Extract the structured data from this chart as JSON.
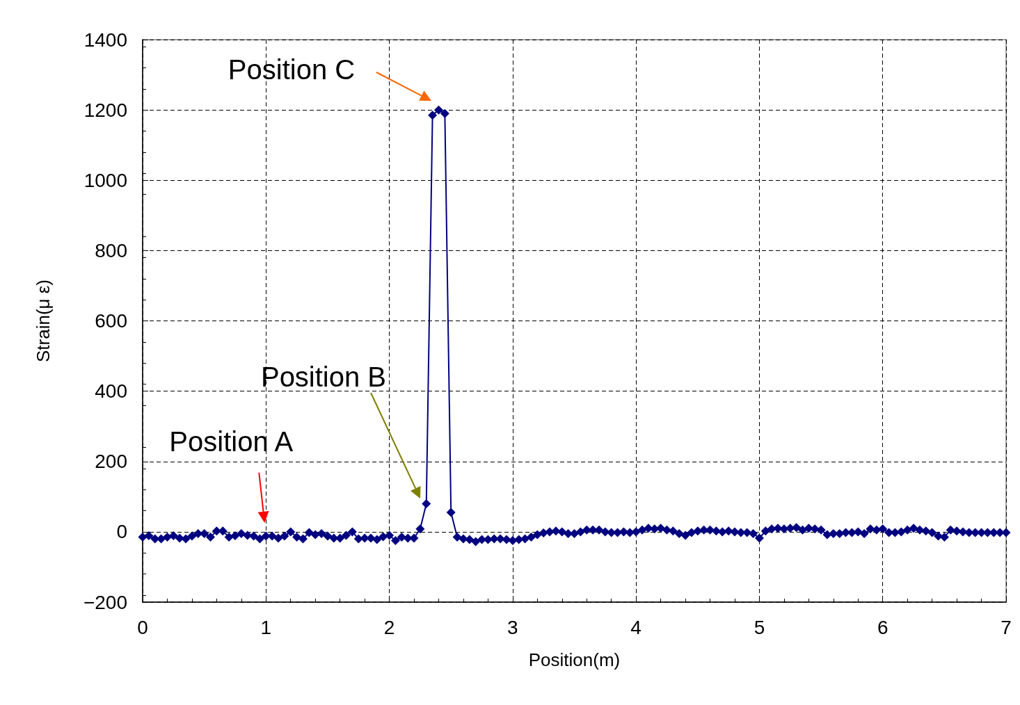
{
  "chart_data": {
    "type": "line",
    "xlabel": "Position(m)",
    "ylabel": "Strain(μ ε)",
    "xlim": [
      0,
      7
    ],
    "xticks": [
      0,
      1,
      2,
      3,
      4,
      5,
      6,
      7
    ],
    "ylim": [
      -200,
      1400
    ],
    "yticks": [
      -200,
      0,
      200,
      400,
      600,
      800,
      1000,
      1200,
      1400
    ],
    "grid": true,
    "marker": "diamond",
    "line_style": "solid",
    "x": [
      0,
      0.05,
      0.1,
      0.15,
      0.2,
      0.25,
      0.3,
      0.35,
      0.4,
      0.45,
      0.5,
      0.55,
      0.6,
      0.65,
      0.7,
      0.75,
      0.8,
      0.85,
      0.9,
      0.95,
      1,
      1.05,
      1.1,
      1.15,
      1.2,
      1.25,
      1.3,
      1.35,
      1.4,
      1.45,
      1.5,
      1.55,
      1.6,
      1.65,
      1.7,
      1.75,
      1.8,
      1.85,
      1.9,
      1.95,
      2,
      2.05,
      2.1,
      2.15,
      2.2,
      2.25,
      2.3,
      2.35,
      2.4,
      2.45,
      2.5,
      2.55,
      2.6,
      2.65,
      2.7,
      2.75,
      2.8,
      2.85,
      2.9,
      2.95,
      3,
      3.05,
      3.1,
      3.15,
      3.2,
      3.25,
      3.3,
      3.35,
      3.4,
      3.45,
      3.5,
      3.55,
      3.6,
      3.65,
      3.7,
      3.75,
      3.8,
      3.85,
      3.9,
      3.95,
      4,
      4.05,
      4.1,
      4.15,
      4.2,
      4.25,
      4.3,
      4.35,
      4.4,
      4.45,
      4.5,
      4.55,
      4.6,
      4.65,
      4.7,
      4.75,
      4.8,
      4.85,
      4.9,
      4.95,
      5,
      5.05,
      5.1,
      5.15,
      5.2,
      5.25,
      5.3,
      5.35,
      5.4,
      5.45,
      5.5,
      5.55,
      5.6,
      5.65,
      5.7,
      5.75,
      5.8,
      5.85,
      5.9,
      5.95,
      6,
      6.05,
      6.1,
      6.15,
      6.2,
      6.25,
      6.3,
      6.35,
      6.4,
      6.45,
      6.5,
      6.55,
      6.6,
      6.65,
      6.7,
      6.75,
      6.8,
      6.85,
      6.9,
      6.95,
      7
    ],
    "series": [
      {
        "color": "#000080",
        "values": [
          -15,
          -11,
          -20,
          -20,
          -15,
          -11,
          -18,
          -20,
          -12,
          -5,
          -5,
          -15,
          2,
          2,
          -15,
          -11,
          -5,
          -10,
          -12,
          -20,
          -12,
          -12,
          -18,
          -12,
          0,
          -15,
          -20,
          -2,
          -8,
          -5,
          -12,
          -18,
          -18,
          -10,
          0,
          -20,
          -18,
          -18,
          -22,
          -14,
          -10,
          -25,
          -15,
          -18,
          -18,
          8,
          80,
          1185,
          1200,
          1190,
          55,
          -15,
          -20,
          -22,
          -28,
          -22,
          -22,
          -20,
          -20,
          -22,
          -25,
          -22,
          -20,
          -15,
          -8,
          -3,
          0,
          2,
          0,
          -5,
          -5,
          0,
          5,
          5,
          5,
          0,
          -2,
          -2,
          0,
          -2,
          0,
          5,
          10,
          8,
          10,
          5,
          2,
          -5,
          -10,
          -2,
          2,
          5,
          5,
          2,
          0,
          2,
          0,
          -2,
          -2,
          -5,
          -18,
          2,
          8,
          10,
          8,
          10,
          12,
          5,
          10,
          8,
          5,
          -8,
          -5,
          -5,
          -2,
          -2,
          0,
          -5,
          8,
          5,
          8,
          -2,
          -2,
          0,
          5,
          10,
          5,
          2,
          -2,
          -12,
          -15,
          5,
          2,
          0,
          -2,
          -2,
          -2,
          -2,
          -2,
          -2,
          -2
        ]
      }
    ],
    "annotations": [
      {
        "text": "Position A",
        "x": 1,
        "y": 0
      },
      "Position B",
      "Position C"
    ]
  }
}
